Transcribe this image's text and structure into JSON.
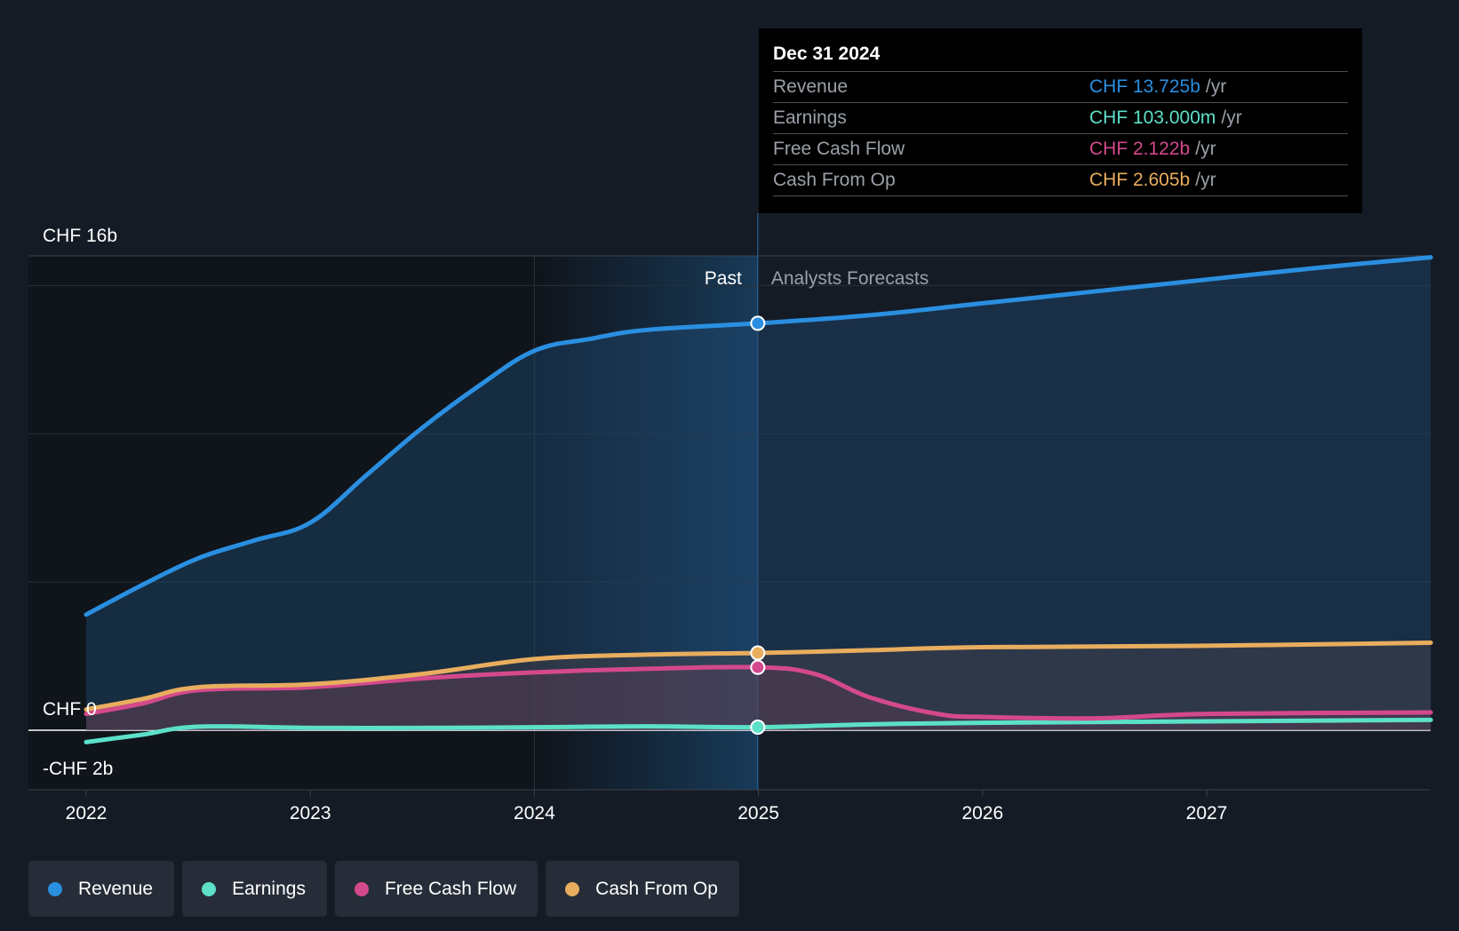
{
  "chart_data": {
    "type": "line",
    "title": "",
    "y_axis": {
      "labels": [
        "CHF 16b",
        "CHF 0",
        "-CHF 2b"
      ],
      "min": -2,
      "max": 16,
      "unit": "CHF b"
    },
    "x_axis": {
      "ticks": [
        "2022",
        "2023",
        "2024",
        "2025",
        "2026",
        "2027"
      ]
    },
    "sections": {
      "past_label": "Past",
      "forecast_label": "Analysts Forecasts",
      "divider_at": 2024.997
    },
    "series": [
      {
        "name": "Revenue",
        "color": "#2a8fe0",
        "points": [
          [
            2022.0,
            3.9
          ],
          [
            2022.25,
            4.9
          ],
          [
            2022.5,
            5.8
          ],
          [
            2022.75,
            6.4
          ],
          [
            2023.0,
            7.0
          ],
          [
            2023.25,
            8.6
          ],
          [
            2023.5,
            10.2
          ],
          [
            2023.75,
            11.6
          ],
          [
            2024.0,
            12.8
          ],
          [
            2024.25,
            13.2
          ],
          [
            2024.5,
            13.5
          ],
          [
            2024.997,
            13.725
          ],
          [
            2025.5,
            14.0
          ],
          [
            2026.0,
            14.4
          ],
          [
            2026.5,
            14.8
          ],
          [
            2027.0,
            15.2
          ],
          [
            2027.5,
            15.6
          ],
          [
            2028.0,
            15.95
          ]
        ]
      },
      {
        "name": "Earnings",
        "color": "#5ce0c8",
        "points": [
          [
            2022.0,
            -0.4
          ],
          [
            2022.25,
            -0.15
          ],
          [
            2022.5,
            0.12
          ],
          [
            2023.0,
            0.08
          ],
          [
            2023.5,
            0.08
          ],
          [
            2024.0,
            0.1
          ],
          [
            2024.5,
            0.13
          ],
          [
            2024.997,
            0.103
          ],
          [
            2025.5,
            0.2
          ],
          [
            2026.0,
            0.25
          ],
          [
            2027.0,
            0.3
          ],
          [
            2028.0,
            0.35
          ]
        ]
      },
      {
        "name": "Free Cash Flow",
        "color": "#d4498c",
        "points": [
          [
            2022.0,
            0.55
          ],
          [
            2022.25,
            0.9
          ],
          [
            2022.5,
            1.35
          ],
          [
            2023.0,
            1.45
          ],
          [
            2023.5,
            1.75
          ],
          [
            2024.0,
            1.95
          ],
          [
            2024.5,
            2.07
          ],
          [
            2024.997,
            2.122
          ],
          [
            2025.25,
            1.9
          ],
          [
            2025.5,
            1.1
          ],
          [
            2025.8,
            0.55
          ],
          [
            2026.0,
            0.45
          ],
          [
            2026.5,
            0.4
          ],
          [
            2027.0,
            0.55
          ],
          [
            2028.0,
            0.6
          ]
        ]
      },
      {
        "name": "Cash From Op",
        "color": "#e8ad5e",
        "points": [
          [
            2022.0,
            0.7
          ],
          [
            2022.25,
            1.05
          ],
          [
            2022.5,
            1.45
          ],
          [
            2023.0,
            1.55
          ],
          [
            2023.5,
            1.9
          ],
          [
            2024.0,
            2.4
          ],
          [
            2024.5,
            2.55
          ],
          [
            2024.997,
            2.605
          ],
          [
            2025.5,
            2.7
          ],
          [
            2026.0,
            2.8
          ],
          [
            2027.0,
            2.85
          ],
          [
            2028.0,
            2.95
          ]
        ]
      }
    ],
    "legend": "bottom-left",
    "grid": true
  },
  "tooltip": {
    "date": "Dec 31 2024",
    "rows": [
      {
        "name": "Revenue",
        "value": "CHF 13.725b",
        "unit": "/yr",
        "color": "#2a8fe0"
      },
      {
        "name": "Earnings",
        "value": "CHF 103.000m",
        "unit": "/yr",
        "color": "#5ce0c8"
      },
      {
        "name": "Free Cash Flow",
        "value": "CHF 2.122b",
        "unit": "/yr",
        "color": "#d4498c"
      },
      {
        "name": "Cash From Op",
        "value": "CHF 2.605b",
        "unit": "/yr",
        "color": "#e8ad5e"
      }
    ]
  },
  "legend_items": [
    {
      "label": "Revenue",
      "color": "#2a8fe0"
    },
    {
      "label": "Earnings",
      "color": "#5ce0c8"
    },
    {
      "label": "Free Cash Flow",
      "color": "#d4498c"
    },
    {
      "label": "Cash From Op",
      "color": "#e8ad5e"
    }
  ]
}
